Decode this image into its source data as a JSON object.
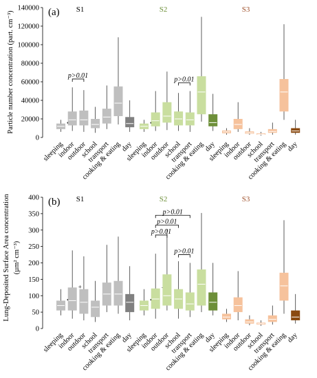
{
  "chart_data": [
    {
      "type": "boxplot",
      "panel_label": "(a)",
      "ylabel": "Particle number concentration (part. cm⁻³)",
      "ylim": [
        0,
        140000
      ],
      "yticks": [
        0,
        20000,
        40000,
        60000,
        80000,
        100000,
        120000,
        140000
      ],
      "grid": false,
      "categories": [
        "sleeping",
        "indoor",
        "outdoor",
        "school",
        "transport",
        "cooking & eating",
        "day"
      ],
      "groups": [
        {
          "name": "S1",
          "colors": {
            "light": "#bfbfbf",
            "dark": "#808080",
            "label": "#000000"
          },
          "boxes": [
            {
              "min": 6000,
              "q1": 9000,
              "median": 12000,
              "q3": 15000,
              "max": 19000,
              "marker": "•"
            },
            {
              "min": 7000,
              "q1": 13000,
              "median": 19000,
              "q3": 28000,
              "max": 54000
            },
            {
              "min": 6000,
              "q1": 13000,
              "median": 19000,
              "q3": 29000,
              "max": 51000
            },
            {
              "min": 5000,
              "q1": 10000,
              "median": 14000,
              "q3": 20000,
              "max": 33000
            },
            {
              "min": 9000,
              "q1": 15000,
              "median": 22000,
              "q3": 31000,
              "max": 56000
            },
            {
              "min": 14000,
              "q1": 23000,
              "median": 37000,
              "q3": 55000,
              "max": 108000
            },
            {
              "min": 6000,
              "q1": 11000,
              "median": 15000,
              "q3": 22000,
              "max": 40000
            }
          ]
        },
        {
          "name": "S2",
          "colors": {
            "light": "#c9de9f",
            "dark": "#6d8f39",
            "label": "#6d8f39"
          },
          "boxes": [
            {
              "min": 6000,
              "q1": 9000,
              "median": 12000,
              "q3": 15000,
              "max": 19000,
              "marker": "•"
            },
            {
              "min": 7000,
              "q1": 12000,
              "median": 18000,
              "q3": 27000,
              "max": 50000
            },
            {
              "min": 8000,
              "q1": 16000,
              "median": 23000,
              "q3": 38000,
              "max": 71000
            },
            {
              "min": 7000,
              "q1": 13000,
              "median": 20000,
              "q3": 28000,
              "max": 48000
            },
            {
              "min": 6000,
              "q1": 13000,
              "median": 19000,
              "q3": 27000,
              "max": 50000
            },
            {
              "min": 17000,
              "q1": 25000,
              "median": 49000,
              "q3": 66000,
              "max": 130000
            },
            {
              "min": 7000,
              "q1": 12000,
              "median": 16000,
              "q3": 25000,
              "max": 47000
            }
          ]
        },
        {
          "name": "S3",
          "colors": {
            "light": "#f6c29c",
            "dark": "#8a4a10",
            "label": "#a0522d"
          },
          "boxes": [
            {
              "min": 3000,
              "q1": 4500,
              "median": 6000,
              "q3": 7500,
              "max": 10000
            },
            {
              "min": 6000,
              "q1": 9000,
              "median": 14000,
              "q3": 20000,
              "max": 38000
            },
            {
              "min": 3000,
              "q1": 4000,
              "median": 5000,
              "q3": 6500,
              "max": 10000
            },
            {
              "min": 2000,
              "q1": 3000,
              "median": 3500,
              "q3": 4500,
              "max": 6000
            },
            {
              "min": 3000,
              "q1": 5000,
              "median": 6500,
              "q3": 9000,
              "max": 16000
            },
            {
              "min": 19000,
              "q1": 28000,
              "median": 49000,
              "q3": 63000,
              "max": 122000
            },
            {
              "min": 3000,
              "q1": 5000,
              "median": 7000,
              "q3": 10000,
              "max": 19000
            }
          ]
        }
      ],
      "annotations": [
        {
          "text": "p>0.01",
          "group": 0,
          "from": 1,
          "to": 2,
          "level": 63000
        },
        {
          "text": "p>0.01",
          "group": 1,
          "from": 3,
          "to": 4,
          "level": 59000
        }
      ]
    },
    {
      "type": "boxplot",
      "panel_label": "(b)",
      "ylabel_line1": "Lung-Deposited Surface Area concentration",
      "ylabel_line2": "(µm² cm⁻³)",
      "ylim": [
        0,
        400
      ],
      "yticks": [
        0,
        50,
        100,
        150,
        200,
        250,
        300,
        350,
        400
      ],
      "grid": false,
      "categories": [
        "sleeping",
        "indoor",
        "outdoor",
        "school",
        "transport",
        "cooking & eating",
        "day"
      ],
      "groups": [
        {
          "name": "S1",
          "colors": {
            "light": "#bfbfbf",
            "dark": "#808080",
            "label": "#000000"
          },
          "boxes": [
            {
              "min": 40,
              "q1": 55,
              "median": 70,
              "q3": 85,
              "max": 120,
              "marker": "•"
            },
            {
              "min": 30,
              "q1": 55,
              "median": 85,
              "q3": 125,
              "max": 238,
              "marker": "+"
            },
            {
              "min": 25,
              "q1": 45,
              "median": 80,
              "q3": 120,
              "max": 220
            },
            {
              "min": 20,
              "q1": 35,
              "median": 65,
              "q3": 85,
              "max": 145
            },
            {
              "min": 50,
              "q1": 70,
              "median": 105,
              "q3": 140,
              "max": 255
            },
            {
              "min": 45,
              "q1": 70,
              "median": 105,
              "q3": 145,
              "max": 280
            },
            {
              "min": 25,
              "q1": 50,
              "median": 80,
              "q3": 105,
              "max": 190
            }
          ]
        },
        {
          "name": "S2",
          "colors": {
            "light": "#c9de9f",
            "dark": "#6d8f39",
            "label": "#6d8f39"
          },
          "boxes": [
            {
              "min": 40,
              "q1": 55,
              "median": 70,
              "q3": 85,
              "max": 120,
              "marker": "•"
            },
            {
              "min": 30,
              "q1": 60,
              "median": 90,
              "q3": 122,
              "max": 228,
              "marker": "+"
            },
            {
              "min": 55,
              "q1": 70,
              "median": 100,
              "q3": 165,
              "max": 302
            },
            {
              "min": 30,
              "q1": 60,
              "median": 90,
              "q3": 120,
              "max": 205
            },
            {
              "min": 35,
              "q1": 55,
              "median": 75,
              "q3": 110,
              "max": 200
            },
            {
              "min": 50,
              "q1": 70,
              "median": 135,
              "q3": 180,
              "max": 352
            },
            {
              "min": 40,
              "q1": 55,
              "median": 80,
              "q3": 110,
              "max": 200
            }
          ]
        },
        {
          "name": "S3",
          "colors": {
            "light": "#f6c29c",
            "dark": "#8a4a10",
            "label": "#a0522d"
          },
          "boxes": [
            {
              "min": 20,
              "q1": 28,
              "median": 35,
              "q3": 45,
              "max": 60
            },
            {
              "min": 25,
              "q1": 50,
              "median": 70,
              "q3": 95,
              "max": 175
            },
            {
              "min": 10,
              "q1": 15,
              "median": 20,
              "q3": 28,
              "max": 40
            },
            {
              "min": 8,
              "q1": 12,
              "median": 15,
              "q3": 18,
              "max": 25
            },
            {
              "min": 12,
              "q1": 20,
              "median": 28,
              "q3": 40,
              "max": 70
            },
            {
              "min": 45,
              "q1": 85,
              "median": 130,
              "q3": 170,
              "max": 330
            },
            {
              "min": 15,
              "q1": 25,
              "median": 35,
              "q3": 55,
              "max": 105
            }
          ]
        }
      ],
      "annotations": [
        {
          "text": "p>0.01",
          "group": 1,
          "from": 1,
          "to": 4,
          "level": 345
        },
        {
          "text": "p>0.01",
          "group": 1,
          "from": 1,
          "to": 3,
          "level": 315
        },
        {
          "text": "p>0.01",
          "group": 1,
          "from": 1,
          "to": 2,
          "level": 285
        },
        {
          "text": "p>0.01",
          "group": 1,
          "from": 3,
          "to": 4,
          "level": 225
        }
      ]
    }
  ]
}
